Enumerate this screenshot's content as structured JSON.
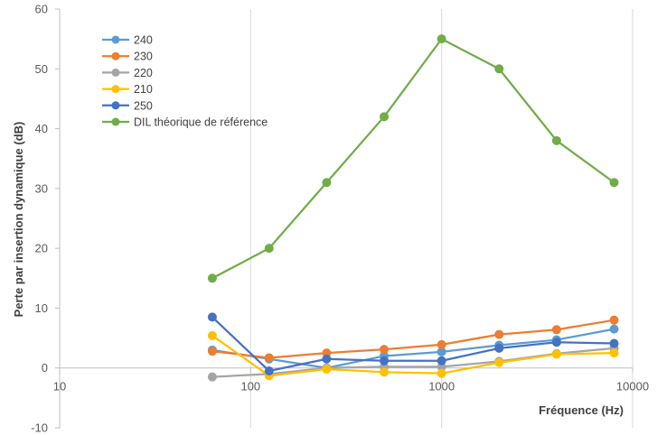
{
  "chart_data": {
    "type": "scatter",
    "x_scale": "log",
    "xlabel": "Fréquence (Hz)",
    "ylabel": "Perte par insertion dynamique (dB)",
    "xlim": [
      10,
      10000
    ],
    "ylim": [
      -10,
      60
    ],
    "x_ticks": [
      "10",
      "100",
      "1000",
      "10000"
    ],
    "y_ticks": [
      "-10",
      "0",
      "10",
      "20",
      "30",
      "40",
      "50",
      "60"
    ],
    "grid": "vertical major gridlines",
    "legend_position": "top-left",
    "x": [
      63,
      125,
      250,
      500,
      1000,
      2000,
      4000,
      8000
    ],
    "series": [
      {
        "name": "240",
        "color": "#5B9BD5",
        "values": [
          3.0,
          1.5,
          0.0,
          2.0,
          2.7,
          3.8,
          4.7,
          6.5
        ]
      },
      {
        "name": "230",
        "color": "#ED7D31",
        "values": [
          2.8,
          1.7,
          2.5,
          3.1,
          3.9,
          5.6,
          6.4,
          8.0
        ]
      },
      {
        "name": "220",
        "color": "#A5A5A5",
        "values": [
          -1.5,
          -1.0,
          0.0,
          0.2,
          0.2,
          1.1,
          2.4,
          3.3
        ]
      },
      {
        "name": "210",
        "color": "#FFC000",
        "values": [
          5.4,
          -1.3,
          -0.2,
          -0.7,
          -0.9,
          0.9,
          2.3,
          2.5
        ]
      },
      {
        "name": "250",
        "color": "#4472C4",
        "values": [
          8.5,
          -0.5,
          1.5,
          1.2,
          1.2,
          3.3,
          4.3,
          4.1
        ]
      },
      {
        "name": "DIL théorique de référence",
        "color": "#70AD47",
        "values": [
          15,
          20,
          31,
          42,
          55,
          50,
          38,
          31
        ]
      }
    ]
  }
}
